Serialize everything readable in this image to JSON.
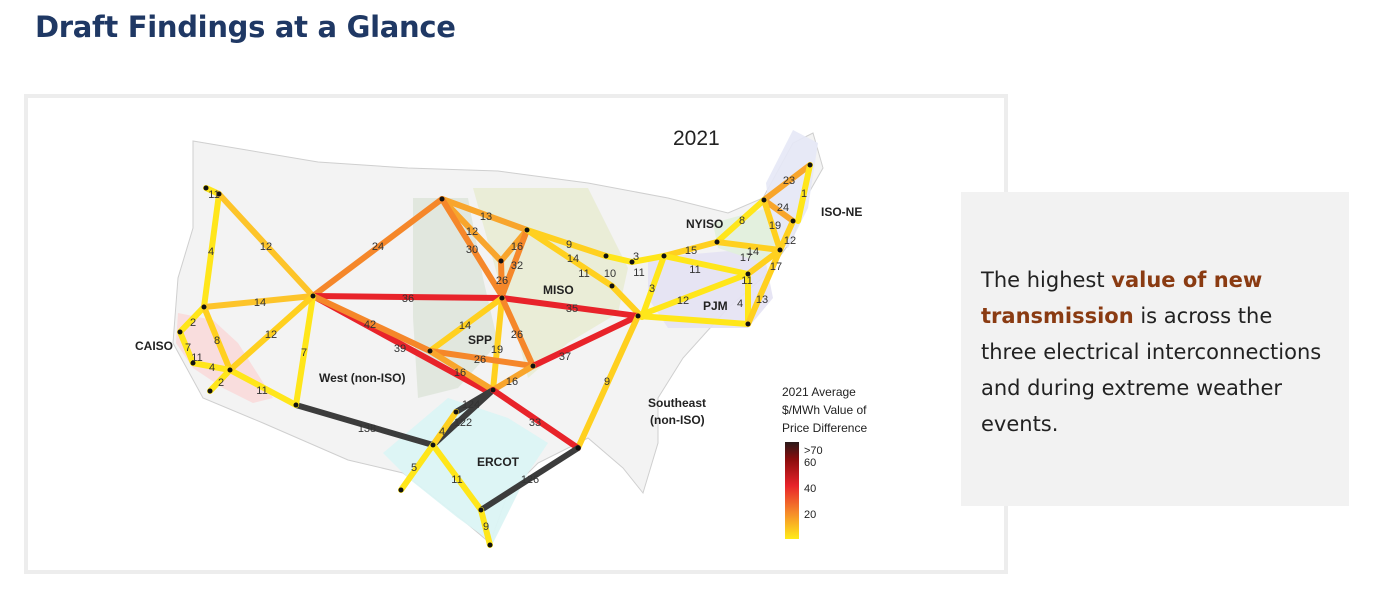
{
  "slide": {
    "title": "Draft Findings at a Glance"
  },
  "callout": {
    "pre": "The highest ",
    "highlight": "value of new transmission",
    "post": " is across the three electrical interconnections and during extreme weather events."
  },
  "map": {
    "year_label": "2021",
    "colors": {
      "low": "#ffe61a",
      "mid": "#f5872a",
      "high": "#e8232a",
      "max": "#3c3c3c"
    },
    "region_labels": {
      "caiso": "CAISO",
      "west": "West (non-ISO)",
      "spp": "SPP",
      "miso": "MISO",
      "nyiso": "NYISO",
      "iso_ne": "ISO-NE",
      "pjm": "PJM",
      "southeast_1": "Southeast",
      "southeast_2": "(non-ISO)",
      "ercot": "ERCOT"
    },
    "legend": {
      "title_1": "2021 Average",
      "title_2": "$/MWh Value of",
      "title_3": "Price Difference",
      "ticks": [
        ">70",
        "60",
        "40",
        "20"
      ]
    },
    "values": [
      "11",
      "4",
      "12",
      "24",
      "13",
      "12",
      "30",
      "16",
      "32",
      "26",
      "9",
      "14",
      "11",
      "10",
      "3",
      "11",
      "3",
      "15",
      "8",
      "23",
      "1",
      "24",
      "19",
      "12",
      "14",
      "17",
      "17",
      "11",
      "11",
      "12",
      "4",
      "13",
      "14",
      "36",
      "35",
      "42",
      "39",
      "12",
      "14",
      "19",
      "26",
      "26",
      "16",
      "37",
      "16",
      "124",
      "122",
      "4",
      "138",
      "7",
      "9",
      "33",
      "5",
      "11",
      "126",
      "9",
      "2",
      "7",
      "8",
      "4",
      "2",
      "11",
      "11"
    ]
  }
}
